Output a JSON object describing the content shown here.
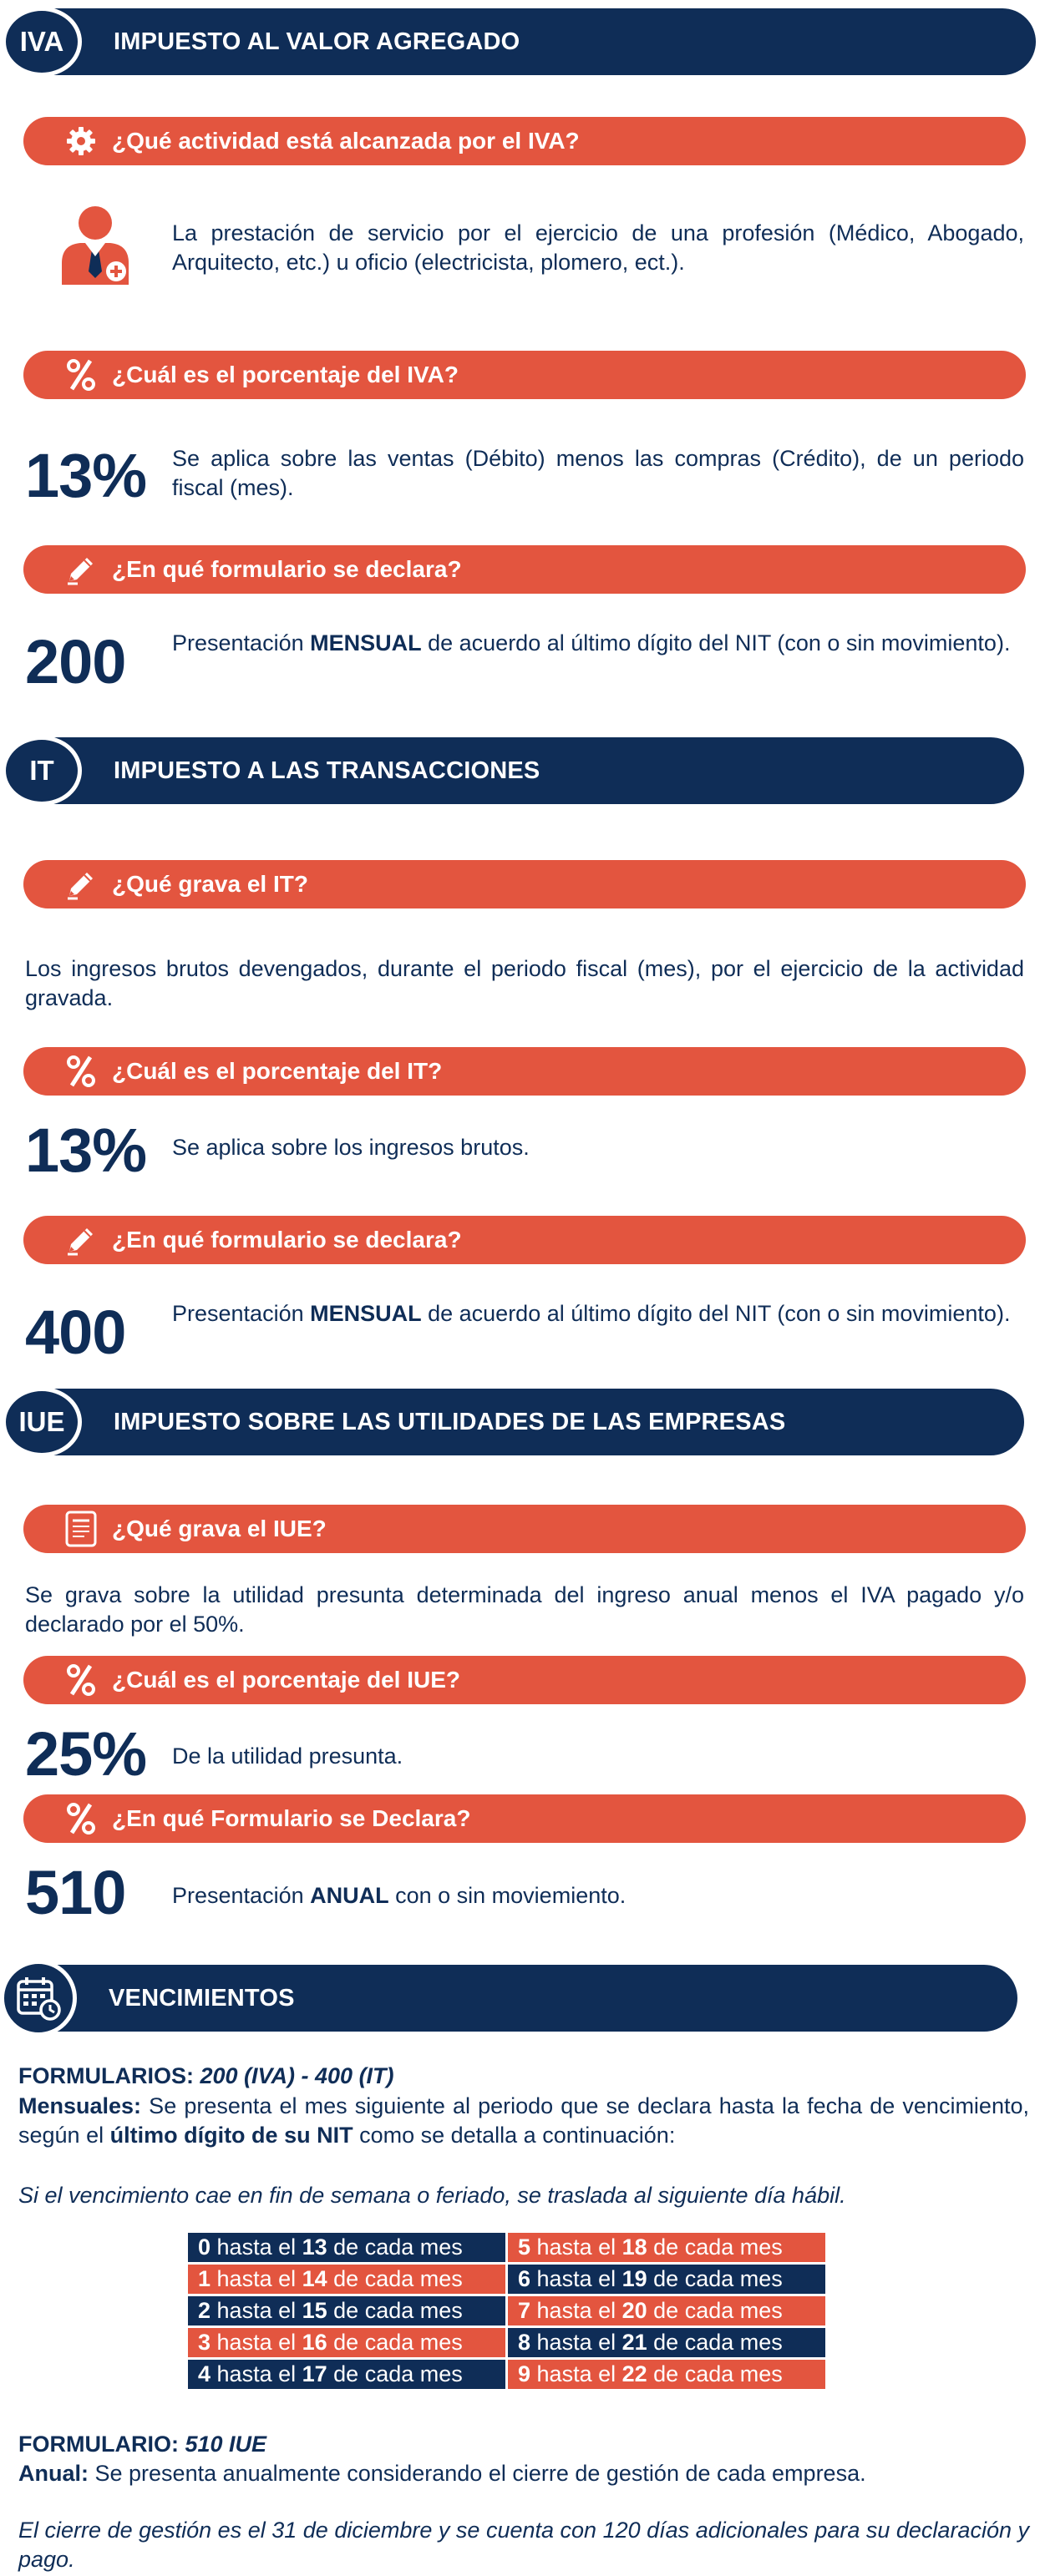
{
  "iva": {
    "badge": "IVA",
    "title": "IMPUESTO AL VALOR AGREGADO",
    "q1": "¿Qué actividad está alcanzada por el IVA?",
    "a1": "La prestación de servicio por el ejercicio de una profesión (Médico, Abogado, Arquitecto, etc.) u oficio (electricista, plomero, ect.).",
    "q2": "¿Cuál es el porcentaje del IVA?",
    "pct": "13%",
    "a2": "Se aplica sobre las ventas (Débito) menos las compras (Crédito), de un periodo fiscal (mes).",
    "q3": "¿En qué formulario se declara?",
    "form": "200",
    "a3_pre": "Presentación ",
    "a3_bold": "MENSUAL",
    "a3_post": " de acuerdo al último dígito del NIT (con o sin movimiento)."
  },
  "it": {
    "badge": "IT",
    "title": "IMPUESTO A LAS TRANSACCIONES",
    "q1": "¿Qué grava el IT?",
    "a1": "Los ingresos brutos devengados, durante el periodo fiscal (mes), por el ejercicio de la actividad gravada.",
    "q2": "¿Cuál es el porcentaje del IT?",
    "pct": "13%",
    "a2": "Se aplica sobre los ingresos brutos.",
    "q3": "¿En qué formulario se declara?",
    "form": "400",
    "a3_pre": "Presentación ",
    "a3_bold": "MENSUAL",
    "a3_post": " de acuerdo al último dígito del NIT (con o sin movimiento)."
  },
  "iue": {
    "badge": "IUE",
    "title": "IMPUESTO SOBRE LAS UTILIDADES DE LAS EMPRESAS",
    "q1": "¿Qué grava el IUE?",
    "a1": "Se grava sobre la utilidad presunta determinada del ingreso anual menos el IVA pagado y/o declarado por el 50%.",
    "q2": "¿Cuál es el porcentaje del IUE?",
    "pct": "25%",
    "a2": "De la utilidad presunta.",
    "q3": "¿En qué Formulario se Declara?",
    "form": "510",
    "a3_pre": "Presentación ",
    "a3_bold": "ANUAL",
    "a3_post": " con o sin moviemiento."
  },
  "venc": {
    "title": "VENCIMIENTOS",
    "form_label": "FORMULARIOS: ",
    "form_value": "200 (IVA) - 400 (IT)",
    "mens_label": "Mensuales:",
    "mens_text_1": " Se presenta el mes siguiente al periodo que se declara hasta la fecha de vencimiento, según el ",
    "mens_bold": "último dígito de su NIT",
    "mens_text_2": " como se detalla a continuación:",
    "note": "Si el vencimiento cae en fin de semana o feriado, se traslada al siguiente día hábil.",
    "hasta": " hasta el ",
    "de_cada_mes": " de cada mes",
    "rows": [
      {
        "d1": "0",
        "day1": "13",
        "d2": "5",
        "day2": "18"
      },
      {
        "d1": "1",
        "day1": "14",
        "d2": "6",
        "day2": "19"
      },
      {
        "d1": "2",
        "day1": "15",
        "d2": "7",
        "day2": "20"
      },
      {
        "d1": "3",
        "day1": "16",
        "d2": "8",
        "day2": "21"
      },
      {
        "d1": "4",
        "day1": "17",
        "d2": "9",
        "day2": "22"
      }
    ],
    "form2_label": "FORMULARIO: ",
    "form2_value": "510 IUE",
    "anual_label": "Anual:",
    "anual_text": " Se presenta anualmente considerando el cierre de gestión de cada empresa.",
    "note2": "El cierre de gestión es el 31 de diciembre y se cuenta con 120 días adicionales para su declaración y pago."
  },
  "colors": {
    "navy": "#0f2d57",
    "orange": "#e3553f"
  },
  "icons": [
    "gear-icon",
    "professional-icon",
    "percent-icon",
    "pencil-icon",
    "document-icon",
    "calendar-clock-icon"
  ]
}
